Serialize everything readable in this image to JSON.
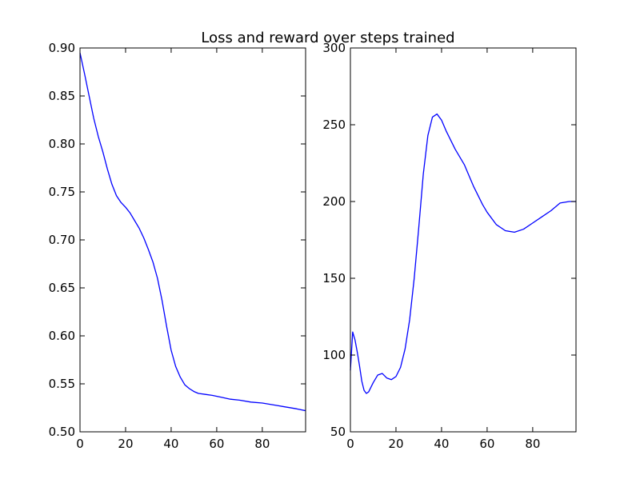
{
  "chart_data": [
    {
      "type": "line",
      "title": "Loss and reward over steps trained",
      "xlabel": "",
      "ylabel": "",
      "xlim": [
        0,
        99
      ],
      "ylim": [
        0.5,
        0.9
      ],
      "xticks": [
        0,
        20,
        40,
        60,
        80
      ],
      "xtick_labels": [
        "0",
        "20",
        "40",
        "60",
        "80"
      ],
      "yticks": [
        0.5,
        0.55,
        0.6,
        0.65,
        0.7,
        0.75,
        0.8,
        0.85,
        0.9
      ],
      "ytick_labels": [
        "0.50",
        "0.55",
        "0.60",
        "0.65",
        "0.70",
        "0.75",
        "0.80",
        "0.85",
        "0.90"
      ],
      "grid": false,
      "series": [
        {
          "color": "#0000ff",
          "x": [
            0,
            2,
            4,
            6,
            8,
            10,
            12,
            14,
            16,
            18,
            20,
            22,
            24,
            26,
            28,
            30,
            32,
            34,
            36,
            38,
            40,
            42,
            44,
            46,
            48,
            50,
            52,
            55,
            58,
            62,
            66,
            70,
            75,
            80,
            85,
            90,
            95,
            99
          ],
          "y": [
            0.895,
            0.873,
            0.85,
            0.827,
            0.808,
            0.792,
            0.774,
            0.758,
            0.746,
            0.739,
            0.734,
            0.728,
            0.72,
            0.712,
            0.702,
            0.69,
            0.677,
            0.66,
            0.637,
            0.61,
            0.585,
            0.568,
            0.557,
            0.549,
            0.545,
            0.542,
            0.54,
            0.539,
            0.538,
            0.536,
            0.534,
            0.533,
            0.531,
            0.53,
            0.528,
            0.526,
            0.524,
            0.522
          ]
        }
      ]
    },
    {
      "type": "line",
      "title": "",
      "xlabel": "",
      "ylabel": "",
      "xlim": [
        0,
        99
      ],
      "ylim": [
        50,
        300
      ],
      "xticks": [
        0,
        20,
        40,
        60,
        80
      ],
      "xtick_labels": [
        "0",
        "20",
        "40",
        "60",
        "80"
      ],
      "yticks": [
        50,
        100,
        150,
        200,
        250,
        300
      ],
      "ytick_labels": [
        "50",
        "100",
        "150",
        "200",
        "250",
        "300"
      ],
      "grid": false,
      "series": [
        {
          "color": "#0000ff",
          "x": [
            0,
            1,
            2,
            3,
            4,
            5,
            6,
            7,
            8,
            9,
            10,
            12,
            14,
            16,
            18,
            20,
            22,
            24,
            26,
            28,
            30,
            32,
            34,
            36,
            38,
            40,
            42,
            44,
            46,
            48,
            50,
            52,
            54,
            56,
            58,
            60,
            64,
            68,
            72,
            76,
            80,
            84,
            88,
            92,
            96,
            99
          ],
          "y": [
            90,
            115,
            110,
            102,
            93,
            83,
            77,
            75,
            76,
            79,
            82,
            87,
            88,
            85,
            84,
            86,
            92,
            104,
            123,
            150,
            183,
            218,
            243,
            255,
            257,
            253,
            246,
            240,
            234,
            229,
            224,
            217,
            210,
            204,
            198,
            193,
            185,
            181,
            180,
            182,
            186,
            190,
            194,
            199,
            200,
            200
          ]
        }
      ]
    }
  ]
}
